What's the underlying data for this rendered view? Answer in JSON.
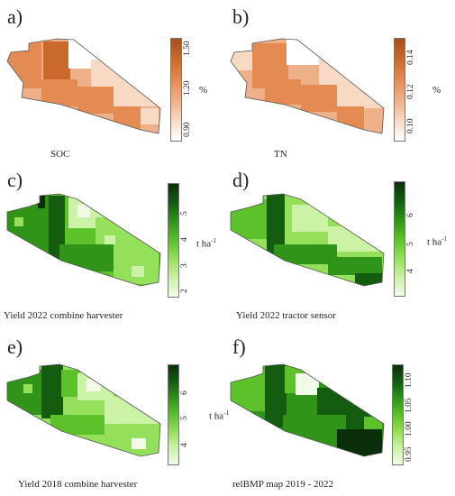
{
  "panels": [
    {
      "letter": "a)",
      "caption": "SOC",
      "unit": "%",
      "ticks": [
        "1.50",
        "1.20",
        "0.90"
      ],
      "colors": [
        "#ffffff",
        "#f7d9c4",
        "#eeb088",
        "#e48a53",
        "#c96a2c",
        "#a5501f"
      ]
    },
    {
      "letter": "b)",
      "caption": "TN",
      "unit": "%",
      "ticks": [
        "0.14",
        "0.12",
        "0.10"
      ],
      "colors": [
        "#ffffff",
        "#f7d9c4",
        "#eeb088",
        "#e48a53",
        "#c96a2c",
        "#a5501f"
      ]
    },
    {
      "letter": "c)",
      "caption": "Yield 2022 combine harvester",
      "unit": "t ha",
      "unit_sup": "-1",
      "ticks": [
        "5",
        "4",
        "3",
        "2"
      ],
      "colors": [
        "#f2fbe9",
        "#ccf2a6",
        "#94e05a",
        "#5cc12a",
        "#2f9418",
        "#145d10",
        "#0b2e0a"
      ]
    },
    {
      "letter": "d)",
      "caption": "Yield 2022 tractor sensor",
      "unit": "t ha",
      "unit_sup": "-1",
      "ticks": [
        "6",
        "5",
        "4"
      ],
      "colors": [
        "#f2fbe9",
        "#ccf2a6",
        "#94e05a",
        "#5cc12a",
        "#2f9418",
        "#145d10",
        "#0b2e0a"
      ]
    },
    {
      "letter": "e)",
      "caption": "Yield 2018 combine harvester",
      "unit": "t ha",
      "unit_sup": "-1",
      "ticks": [
        "6",
        "5",
        "4"
      ],
      "colors": [
        "#f2fbe9",
        "#ccf2a6",
        "#94e05a",
        "#5cc12a",
        "#2f9418",
        "#145d10",
        "#0b2e0a"
      ]
    },
    {
      "letter": "f)",
      "caption": "relBMP map 2019 - 2022",
      "unit": "",
      "ticks": [
        "1.10",
        "1.05",
        "1.00",
        "0.95"
      ],
      "colors": [
        "#f2fbe9",
        "#ccf2a6",
        "#94e05a",
        "#5cc12a",
        "#2f9418",
        "#145d10",
        "#0b2e0a"
      ]
    }
  ]
}
